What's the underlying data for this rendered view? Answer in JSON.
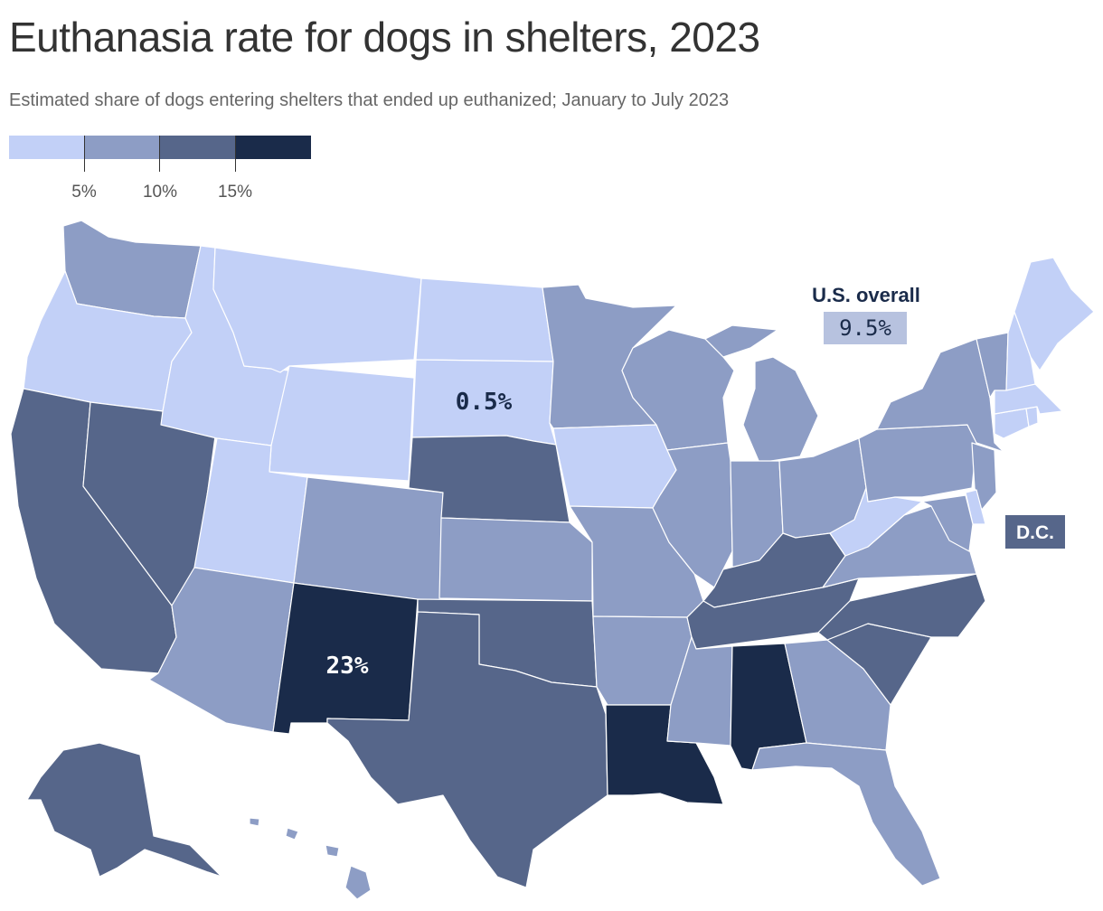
{
  "title": "Euthanasia rate for dogs in shelters, 2023",
  "subtitle": "Estimated share of dogs entering shelters that ended up euthanized; January to July 2023",
  "colors": {
    "bin0": "#c2d0f7",
    "bin1": "#8d9dc5",
    "bin2": "#56668a",
    "bin3": "#1a2b4a",
    "border": "#ffffff"
  },
  "legend": {
    "thresholds": [
      "5%",
      "10%",
      "15%"
    ]
  },
  "callouts": {
    "overall_label": "U.S. overall",
    "overall_value": "9.5%",
    "dc_label": "D.C.",
    "south_dakota_value": "0.5%",
    "new_mexico_value": "23%"
  },
  "map_data": {
    "type": "choropleth",
    "bins": [
      "0–5%",
      "5–10%",
      "10–15%",
      "15%+"
    ],
    "state_bins": {
      "WA": 1,
      "OR": 0,
      "CA": 2,
      "NV": 2,
      "ID": 0,
      "MT": 0,
      "WY": 0,
      "UT": 0,
      "AZ": 1,
      "CO": 1,
      "NM": 3,
      "ND": 0,
      "SD": 0,
      "NE": 2,
      "KS": 1,
      "OK": 2,
      "TX": 2,
      "MN": 1,
      "IA": 0,
      "MO": 1,
      "AR": 1,
      "LA": 3,
      "WI": 1,
      "IL": 1,
      "MI": 1,
      "IN": 1,
      "OH": 1,
      "KY": 2,
      "TN": 2,
      "MS": 1,
      "AL": 3,
      "GA": 1,
      "FL": 1,
      "SC": 2,
      "NC": 2,
      "VA": 1,
      "WV": 0,
      "PA": 1,
      "NY": 1,
      "NJ": 1,
      "DE": 0,
      "MD": 1,
      "CT": 0,
      "RI": 0,
      "MA": 0,
      "VT": 1,
      "NH": 0,
      "ME": 0,
      "AK": 2,
      "HI": 1,
      "DC": 2
    }
  }
}
